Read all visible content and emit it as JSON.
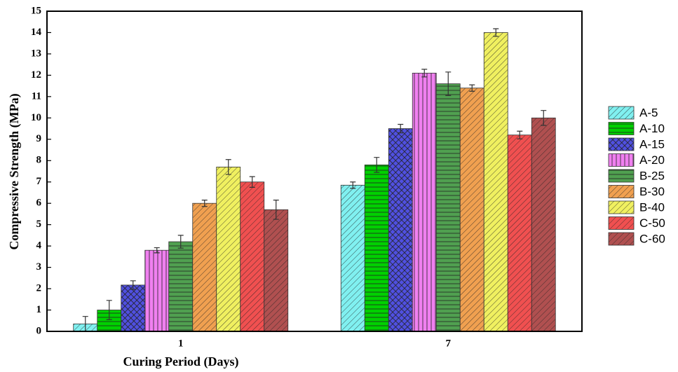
{
  "chart_data": {
    "type": "bar",
    "y_label": "Compressive Strength (MPa)",
    "x_label": "Curing Period (Days)",
    "categories": [
      "1",
      "7"
    ],
    "ylim": [
      0,
      15
    ],
    "yticks": [
      0,
      1,
      2,
      3,
      4,
      5,
      6,
      7,
      8,
      9,
      10,
      11,
      12,
      13,
      14,
      15
    ],
    "legend": "right",
    "series": [
      {
        "name": "A-5",
        "color": "#80f0f0",
        "pattern": "diagonal",
        "values": [
          0.35,
          6.85
        ],
        "errors": [
          0.35,
          0.15
        ]
      },
      {
        "name": "A-10",
        "color": "#00d000",
        "pattern": "horizontal",
        "values": [
          1.0,
          7.8
        ],
        "errors": [
          0.45,
          0.35
        ]
      },
      {
        "name": "A-15",
        "color": "#5050e0",
        "pattern": "cross",
        "values": [
          2.17,
          9.5
        ],
        "errors": [
          0.2,
          0.2
        ]
      },
      {
        "name": "A-20",
        "color": "#f080f0",
        "pattern": "vertical",
        "values": [
          3.8,
          12.1
        ],
        "errors": [
          0.12,
          0.18
        ]
      },
      {
        "name": "B-25",
        "color": "#50a050",
        "pattern": "horizontal",
        "values": [
          4.2,
          11.6
        ],
        "errors": [
          0.3,
          0.55
        ]
      },
      {
        "name": "B-30",
        "color": "#f0a050",
        "pattern": "diagonal",
        "values": [
          6.0,
          11.4
        ],
        "errors": [
          0.15,
          0.15
        ]
      },
      {
        "name": "B-40",
        "color": "#f0f060",
        "pattern": "diagonal",
        "values": [
          7.7,
          14.0
        ],
        "errors": [
          0.35,
          0.18
        ]
      },
      {
        "name": "C-50",
        "color": "#f05050",
        "pattern": "diagonal",
        "values": [
          7.0,
          9.2
        ],
        "errors": [
          0.25,
          0.18
        ]
      },
      {
        "name": "C-60",
        "color": "#b05050",
        "pattern": "diagonal",
        "values": [
          5.7,
          10.0
        ],
        "errors": [
          0.45,
          0.35
        ]
      }
    ]
  }
}
